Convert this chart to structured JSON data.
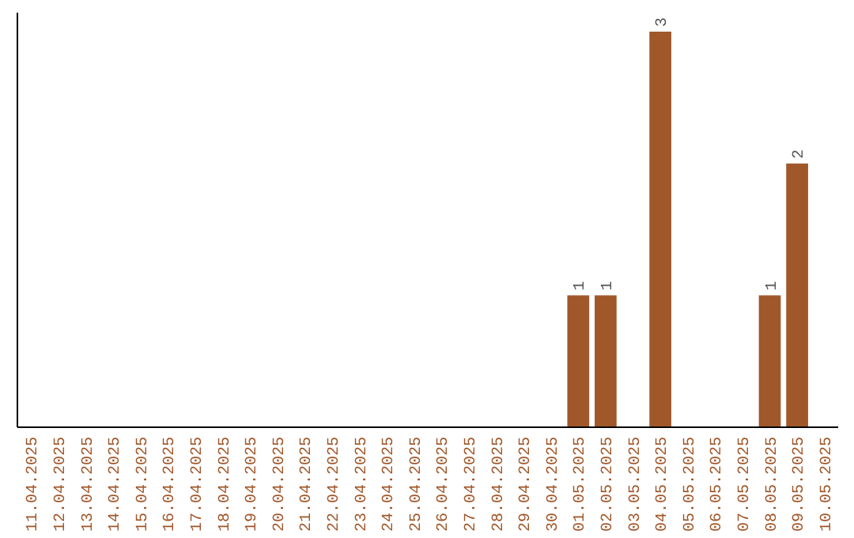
{
  "chart_data": {
    "type": "bar",
    "categories": [
      "11.04.2025",
      "12.04.2025",
      "13.04.2025",
      "14.04.2025",
      "15.04.2025",
      "16.04.2025",
      "17.04.2025",
      "18.04.2025",
      "19.04.2025",
      "20.04.2025",
      "21.04.2025",
      "22.04.2025",
      "23.04.2025",
      "24.04.2025",
      "25.04.2025",
      "26.04.2025",
      "27.04.2025",
      "28.04.2025",
      "29.04.2025",
      "30.04.2025",
      "01.05.2025",
      "02.05.2025",
      "03.05.2025",
      "04.05.2025",
      "05.05.2025",
      "06.05.2025",
      "07.05.2025",
      "08.05.2025",
      "09.05.2025",
      "10.05.2025"
    ],
    "values": [
      null,
      null,
      null,
      null,
      null,
      null,
      null,
      null,
      null,
      null,
      null,
      null,
      null,
      null,
      null,
      null,
      null,
      null,
      null,
      null,
      1,
      1,
      null,
      3,
      null,
      null,
      null,
      1,
      2,
      null
    ],
    "data_labels": true,
    "color": "#a0572a"
  }
}
